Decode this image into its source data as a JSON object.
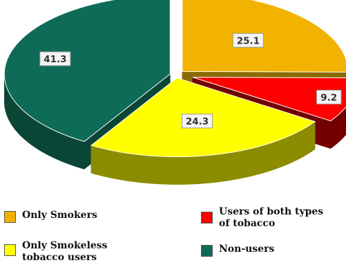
{
  "chart_data": {
    "type": "pie",
    "style": "3d-exploded",
    "categories": [
      "Only Smokers",
      "Users of both types of tobacco",
      "Only Smokeless tobacco users",
      "Non-users"
    ],
    "values": [
      25.1,
      9.2,
      24.3,
      41.3
    ],
    "colors": [
      "#f2b200",
      "#ff0000",
      "#ffff00",
      "#0e6b57"
    ],
    "side_colors": [
      "#8a6a00",
      "#720000",
      "#8c8c00",
      "#0a4535"
    ],
    "data_labels": [
      "25.1",
      "9.2",
      "24.3",
      "41.3"
    ],
    "legend": {
      "position": "bottom",
      "items": [
        {
          "label_lines": [
            "Only Smokers"
          ],
          "color": "#f2b200"
        },
        {
          "label_lines": [
            "Users of both types",
            "of tobacco"
          ],
          "color": "#ff0000"
        },
        {
          "label_lines": [
            "Only Smokeless",
            "tobacco users"
          ],
          "color": "#ffff00"
        },
        {
          "label_lines": [
            "Non-users"
          ],
          "color": "#0e6b57"
        }
      ]
    }
  }
}
